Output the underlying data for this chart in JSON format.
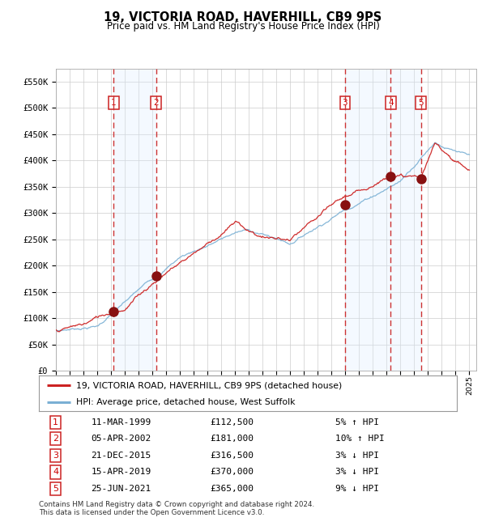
{
  "title": "19, VICTORIA ROAD, HAVERHILL, CB9 9PS",
  "subtitle": "Price paid vs. HM Land Registry's House Price Index (HPI)",
  "ylim": [
    0,
    575000
  ],
  "yticks": [
    0,
    50000,
    100000,
    150000,
    200000,
    250000,
    300000,
    350000,
    400000,
    450000,
    500000,
    550000
  ],
  "ytick_labels": [
    "£0",
    "£50K",
    "£100K",
    "£150K",
    "£200K",
    "£250K",
    "£300K",
    "£350K",
    "£400K",
    "£450K",
    "£500K",
    "£550K"
  ],
  "hpi_color": "#7ab0d4",
  "price_color": "#cc2222",
  "sale_marker_color": "#881111",
  "bg_color": "#ffffff",
  "grid_color": "#cccccc",
  "shade_color": "#ddeeff",
  "dashed_line_color": "#cc3333",
  "xlim_start": 1995.0,
  "xlim_end": 2025.5,
  "transactions": [
    {
      "num": 1,
      "date_str": "11-MAR-1999",
      "year": 1999.19,
      "price": 112500,
      "hpi_pct": "5% ↑ HPI"
    },
    {
      "num": 2,
      "date_str": "05-APR-2002",
      "year": 2002.26,
      "price": 181000,
      "hpi_pct": "10% ↑ HPI"
    },
    {
      "num": 3,
      "date_str": "21-DEC-2015",
      "year": 2015.97,
      "price": 316500,
      "hpi_pct": "3% ↓ HPI"
    },
    {
      "num": 4,
      "date_str": "15-APR-2019",
      "year": 2019.29,
      "price": 370000,
      "hpi_pct": "3% ↓ HPI"
    },
    {
      "num": 5,
      "date_str": "25-JUN-2021",
      "year": 2021.48,
      "price": 365000,
      "hpi_pct": "9% ↓ HPI"
    }
  ],
  "legend_label_price": "19, VICTORIA ROAD, HAVERHILL, CB9 9PS (detached house)",
  "legend_label_hpi": "HPI: Average price, detached house, West Suffolk",
  "footer": "Contains HM Land Registry data © Crown copyright and database right 2024.\nThis data is licensed under the Open Government Licence v3.0.",
  "table_rows": [
    [
      "1",
      "11-MAR-1999",
      "£112,500",
      "5% ↑ HPI"
    ],
    [
      "2",
      "05-APR-2002",
      "£181,000",
      "10% ↑ HPI"
    ],
    [
      "3",
      "21-DEC-2015",
      "£316,500",
      "3% ↓ HPI"
    ],
    [
      "4",
      "15-APR-2019",
      "£370,000",
      "3% ↓ HPI"
    ],
    [
      "5",
      "25-JUN-2021",
      "£365,000",
      "9% ↓ HPI"
    ]
  ]
}
